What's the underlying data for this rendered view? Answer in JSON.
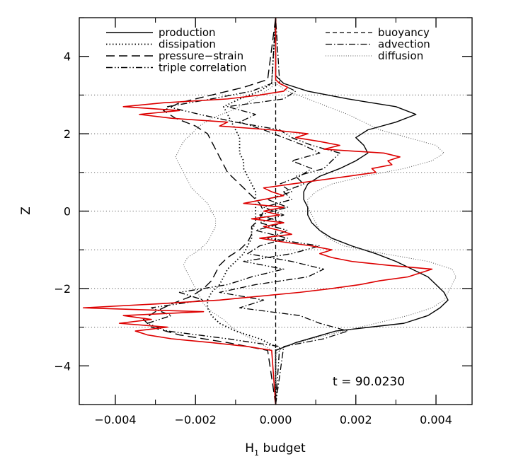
{
  "chart_data": {
    "type": "line",
    "title": "",
    "xlabel": "H",
    "xlabel_subscript": "1",
    "xlabel_suffix": " budget",
    "ylabel": "Z",
    "xlim": [
      -0.0049,
      0.0049
    ],
    "ylim": [
      -5,
      5
    ],
    "x_ticks": [
      -0.004,
      -0.002,
      0.0,
      0.002,
      0.004
    ],
    "x_tick_labels": [
      "−0.004",
      "−0.002",
      "0.000",
      "0.002",
      "0.004"
    ],
    "y_ticks": [
      -4,
      -2,
      0,
      2,
      4
    ],
    "y_tick_labels": [
      "−4",
      "−2",
      "0",
      "2",
      "4"
    ],
    "reference_lines_y": [
      -3,
      -2,
      -1,
      0,
      1,
      2,
      3
    ],
    "annotation": "t = 90.0230",
    "legend": {
      "placement": "top",
      "left": [
        {
          "name": "production",
          "style": "solid"
        },
        {
          "name": "dissipation",
          "style": "dotted"
        },
        {
          "name": "pressure−strain",
          "style": "dashed"
        },
        {
          "name": "triple correlation",
          "style": "dashdotdot"
        }
      ],
      "right": [
        {
          "name": "buoyancy",
          "style": "shortdash"
        },
        {
          "name": "advection",
          "style": "dashdot"
        },
        {
          "name": "diffusion",
          "style": "finedot"
        }
      ]
    },
    "series": [
      {
        "name": "production",
        "style": "solid",
        "color": "#000000",
        "z": [
          -5,
          -3.6,
          -3.4,
          -3.1,
          -2.9,
          -2.7,
          -2.5,
          -2.3,
          -2.1,
          -1.9,
          -1.7,
          -1.5,
          -1.3,
          -1.1,
          -0.9,
          -0.7,
          -0.5,
          -0.3,
          -0.1,
          0.1,
          0.3,
          0.5,
          0.7,
          0.9,
          1.1,
          1.3,
          1.5,
          1.7,
          1.9,
          2.1,
          2.3,
          2.5,
          2.7,
          2.9,
          3.1,
          3.3,
          3.5,
          5
        ],
        "x": [
          0,
          0,
          0.0005,
          0.0015,
          0.0032,
          0.0038,
          0.0041,
          0.0043,
          0.0042,
          0.004,
          0.0038,
          0.0034,
          0.003,
          0.0025,
          0.0019,
          0.0014,
          0.0011,
          0.0009,
          0.0008,
          0.0008,
          0.0007,
          0.0007,
          0.0008,
          0.0011,
          0.0016,
          0.002,
          0.0023,
          0.0022,
          0.002,
          0.0023,
          0.003,
          0.0035,
          0.003,
          0.0018,
          0.0008,
          0.0002,
          0,
          0
        ]
      },
      {
        "name": "dissipation",
        "style": "dotted",
        "color": "#000000",
        "z": [
          -5,
          -3.5,
          -3.3,
          -3.1,
          -2.9,
          -2.7,
          -2.5,
          -2.3,
          -2.1,
          -1.9,
          -1.7,
          -1.5,
          -1.3,
          -1.1,
          -0.9,
          -0.7,
          -0.5,
          -0.3,
          -0.1,
          0.1,
          0.3,
          0.5,
          0.7,
          0.9,
          1.1,
          1.3,
          1.5,
          1.7,
          1.9,
          2.1,
          2.3,
          2.5,
          2.7,
          2.9,
          3.1,
          3.3,
          5
        ],
        "x": [
          0,
          0,
          -0.0004,
          -0.001,
          -0.0014,
          -0.0016,
          -0.0017,
          -0.0017,
          -0.0016,
          -0.0014,
          -0.0013,
          -0.0012,
          -0.001,
          -0.0008,
          -0.0007,
          -0.0006,
          -0.0006,
          -0.0005,
          -0.0005,
          -0.0005,
          -0.0005,
          -0.0005,
          -0.0006,
          -0.0007,
          -0.0008,
          -0.0008,
          -0.0009,
          -0.0009,
          -0.0009,
          -0.001,
          -0.0011,
          -0.0012,
          -0.0013,
          -0.0009,
          -0.0004,
          -0.0001,
          0
        ]
      },
      {
        "name": "pressure−strain",
        "style": "dashed",
        "color": "#000000",
        "z": [
          -5,
          -3.6,
          -3.4,
          -3.2,
          -3.0,
          -2.8,
          -2.6,
          -2.4,
          -2.2,
          -2.0,
          -1.8,
          -1.6,
          -1.4,
          -1.2,
          -1.0,
          -0.8,
          -0.6,
          -0.4,
          -0.2,
          0,
          0.2,
          0.4,
          0.6,
          0.8,
          1.0,
          1.2,
          1.4,
          1.6,
          1.8,
          2.0,
          2.2,
          2.4,
          2.6,
          2.8,
          3.0,
          3.2,
          3.4,
          5
        ],
        "x": [
          0,
          -0.0002,
          -0.0012,
          -0.0024,
          -0.0031,
          -0.0033,
          -0.003,
          -0.0026,
          -0.0021,
          -0.0018,
          -0.0016,
          -0.0015,
          -0.0014,
          -0.0012,
          -0.0009,
          -0.0007,
          -0.0006,
          -0.0006,
          -0.0004,
          -0.0003,
          -0.0004,
          -0.0006,
          -0.0008,
          -0.001,
          -0.0012,
          -0.0013,
          -0.0014,
          -0.0015,
          -0.0016,
          -0.0017,
          -0.002,
          -0.0025,
          -0.0028,
          -0.0024,
          -0.0016,
          -0.0008,
          -0.0002,
          0
        ]
      },
      {
        "name": "triple correlation",
        "style": "dashdotdot",
        "color": "#000000",
        "z": [
          -5,
          -3.5,
          -3.3,
          -3.1,
          -2.9,
          -2.7,
          -2.5,
          -2.3,
          -2.1,
          -1.9,
          -1.7,
          -1.5,
          -1.3,
          -1.1,
          -0.9,
          -0.7,
          -0.5,
          -0.3,
          -0.1,
          0.1,
          0.3,
          0.5,
          0.7,
          0.9,
          1.1,
          1.3,
          1.5,
          1.7,
          1.9,
          2.1,
          2.3,
          2.5,
          2.7,
          2.9,
          3.1,
          3.3,
          5
        ],
        "x": [
          0,
          0.0001,
          -0.0012,
          -0.0027,
          -0.0032,
          -0.0026,
          -0.0031,
          -0.0018,
          -0.0024,
          -0.0012,
          -0.0006,
          0.0002,
          -0.0008,
          0.0004,
          0.0011,
          -0.0002,
          0.0003,
          -0.0004,
          0.0002,
          -0.0003,
          0.0004,
          0.0002,
          0.0007,
          0.0005,
          0.0012,
          0.0014,
          0.0016,
          0.0009,
          0.0004,
          0.0001,
          -0.001,
          -0.0019,
          -0.0027,
          -0.0016,
          -0.0006,
          -0.0001,
          0
        ]
      },
      {
        "name": "buoyancy",
        "style": "shortdash",
        "color": "#000000",
        "z": [
          -5,
          5
        ],
        "x": [
          0,
          0
        ]
      },
      {
        "name": "advection",
        "style": "dashdot",
        "color": "#000000",
        "z": [
          -5,
          -3.5,
          -3.3,
          -3.1,
          -2.9,
          -2.7,
          -2.5,
          -2.3,
          -2.1,
          -1.9,
          -1.7,
          -1.5,
          -1.3,
          -1.1,
          -0.9,
          -0.7,
          -0.5,
          -0.3,
          -0.1,
          0.1,
          0.3,
          0.5,
          0.7,
          0.9,
          1.1,
          1.3,
          1.5,
          1.7,
          1.9,
          2.1,
          2.3,
          2.5,
          2.7,
          2.9,
          3.1,
          3.3,
          5
        ],
        "x": [
          0,
          0.0002,
          0.0012,
          0.0018,
          0.0011,
          0.0006,
          -0.0009,
          -0.0003,
          -0.0014,
          -0.0005,
          0.0008,
          0.0012,
          0.0004,
          -0.0007,
          -0.0004,
          0.0003,
          -0.0005,
          0.0002,
          -0.0004,
          0.0003,
          -0.0002,
          0.0004,
          0.0001,
          0.0006,
          0.0009,
          0.0004,
          0.0011,
          0.0007,
          0.0002,
          -0.0003,
          -0.0009,
          -0.0005,
          -0.0012,
          0.0002,
          0.0005,
          0.0001,
          0
        ]
      },
      {
        "name": "diffusion",
        "style": "finedot",
        "color": "#000000",
        "z": [
          -5,
          -3.7,
          -3.5,
          -3.3,
          -3.1,
          -2.9,
          -2.7,
          -2.5,
          -2.3,
          -2.1,
          -1.9,
          -1.7,
          -1.5,
          -1.3,
          -1.1,
          -0.9,
          -0.7,
          -0.5,
          -0.3,
          -0.1,
          0.1,
          0.3,
          0.5,
          0.7,
          0.9,
          1.1,
          1.3,
          1.5,
          1.7,
          1.9,
          2.1,
          2.3,
          2.5,
          2.7,
          2.9,
          3.1,
          3.3,
          5
        ],
        "x": [
          0,
          0,
          0.0002,
          0.0009,
          0.0017,
          0.0025,
          0.0033,
          0.0039,
          0.0042,
          0.0043,
          0.0044,
          0.0045,
          0.0044,
          0.0038,
          0.0027,
          0.0017,
          0.0013,
          0.0011,
          0.001,
          0.0009,
          0.0008,
          0.0008,
          0.001,
          0.0014,
          0.0022,
          0.0032,
          0.0039,
          0.0042,
          0.004,
          0.0033,
          0.0026,
          0.0022,
          0.0018,
          0.0013,
          0.0008,
          0.0003,
          0,
          0
        ]
      },
      {
        "name": "",
        "style": "finedot",
        "color": "#000000",
        "z": [
          -5,
          -3.6,
          -3.4,
          -3.2,
          -3.0,
          -2.8,
          -2.6,
          -2.4,
          -2.2,
          -2.0,
          -1.8,
          -1.6,
          -1.4,
          -1.2,
          -1.0,
          -0.8,
          -0.6,
          -0.4,
          -0.2,
          0,
          0.2,
          0.4,
          0.6,
          0.8,
          1.0,
          1.2,
          1.4,
          1.6,
          1.8,
          2.0,
          2.2,
          2.4,
          2.6,
          2.8,
          3.0,
          3.2,
          3.4,
          5
        ],
        "x": [
          0,
          -0.0001,
          -0.0004,
          -0.0008,
          -0.0011,
          -0.0013,
          -0.0016,
          -0.0018,
          -0.0019,
          -0.002,
          -0.0021,
          -0.0022,
          -0.0023,
          -0.0022,
          -0.0019,
          -0.0017,
          -0.0016,
          -0.0015,
          -0.0015,
          -0.0016,
          -0.0017,
          -0.0019,
          -0.0021,
          -0.0022,
          -0.0023,
          -0.0024,
          -0.0025,
          -0.0024,
          -0.0023,
          -0.0021,
          -0.0019,
          -0.0016,
          -0.0011,
          -0.0007,
          -0.0004,
          -0.0001,
          0,
          0
        ]
      },
      {
        "name": "",
        "style": "solid",
        "color": "#dd0000",
        "z": [
          -5,
          -3.6,
          -3.5,
          -3.4,
          -3.3,
          -3.2,
          -3.1,
          -3.0,
          -2.9,
          -2.8,
          -2.7,
          -2.6,
          -2.5,
          -2.4,
          -2.3,
          -2.2,
          -2.1,
          -2.0,
          -1.9,
          -1.8,
          -1.7,
          -1.6,
          -1.5,
          -1.4,
          -1.3,
          -1.2,
          -1.1,
          -1.0,
          -0.9,
          -0.8,
          -0.7,
          -0.6,
          -0.5,
          -0.4,
          -0.3,
          -0.2,
          -0.1,
          0,
          0.1,
          0.2,
          0.3,
          0.4,
          0.5,
          0.6,
          0.7,
          0.8,
          0.9,
          1.0,
          1.1,
          1.2,
          1.3,
          1.4,
          1.5,
          1.6,
          1.7,
          1.8,
          1.9,
          2.0,
          2.1,
          2.2,
          2.3,
          2.4,
          2.5,
          2.6,
          2.7,
          2.8,
          2.9,
          3.0,
          3.1,
          3.2,
          3.3,
          3.4,
          5
        ],
        "x": [
          0,
          -0.0001,
          -0.0007,
          -0.0016,
          -0.0026,
          -0.0032,
          -0.0035,
          -0.0027,
          -0.0039,
          -0.0031,
          -0.0038,
          -0.0018,
          -0.0048,
          -0.003,
          -0.0014,
          -0.0004,
          0.0006,
          0.0014,
          0.0021,
          0.0026,
          0.0033,
          0.0036,
          0.0039,
          0.0028,
          0.0019,
          0.0014,
          0.0011,
          0.0014,
          0.0009,
          0.0002,
          -0.0004,
          0.0004,
          0.0001,
          -0.0003,
          0.0002,
          -0.0006,
          0.0001,
          -0.0003,
          0.0002,
          -0.0008,
          -0.0003,
          0.0002,
          -0.0001,
          -0.0003,
          0.0004,
          0.0011,
          0.0018,
          0.0025,
          0.0024,
          0.0029,
          0.0028,
          0.0031,
          0.0027,
          0.0012,
          0.0016,
          0.0011,
          0.0005,
          0.0008,
          -0.0001,
          -0.0014,
          -0.0012,
          -0.0026,
          -0.0034,
          -0.0024,
          -0.0038,
          -0.0028,
          -0.0012,
          -0.0004,
          0.0002,
          0.0003,
          0.0001,
          0,
          0
        ]
      }
    ]
  }
}
